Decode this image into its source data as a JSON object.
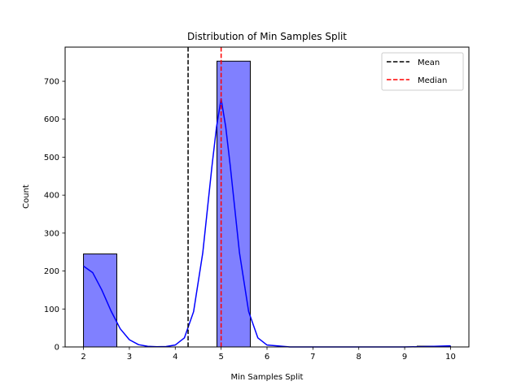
{
  "chart_data": {
    "type": "bar",
    "title": "Distribution of Min Samples Split",
    "xlabel": "Min Samples Split",
    "ylabel": "Count",
    "xlim": [
      1.6,
      10.4
    ],
    "ylim": [
      0,
      790
    ],
    "x_ticks": [
      2,
      3,
      4,
      5,
      6,
      7,
      8,
      9,
      10
    ],
    "y_ticks": [
      0,
      100,
      200,
      300,
      400,
      500,
      600,
      700
    ],
    "bins": [
      {
        "x0": 2.0,
        "x1": 2.727,
        "count": 245
      },
      {
        "x0": 2.727,
        "x1": 3.455,
        "count": 0
      },
      {
        "x0": 3.455,
        "x1": 4.182,
        "count": 0
      },
      {
        "x0": 4.182,
        "x1": 4.909,
        "count": 0
      },
      {
        "x0": 4.909,
        "x1": 5.636,
        "count": 753
      },
      {
        "x0": 5.636,
        "x1": 6.364,
        "count": 0
      },
      {
        "x0": 6.364,
        "x1": 7.091,
        "count": 0
      },
      {
        "x0": 7.091,
        "x1": 7.818,
        "count": 0
      },
      {
        "x0": 7.818,
        "x1": 8.545,
        "count": 0
      },
      {
        "x0": 8.545,
        "x1": 9.273,
        "count": 0
      },
      {
        "x0": 9.273,
        "x1": 10.0,
        "count": 2
      }
    ],
    "kde": {
      "x": [
        2.0,
        2.2,
        2.4,
        2.6,
        2.8,
        3.0,
        3.2,
        3.4,
        3.6,
        3.8,
        4.0,
        4.2,
        4.4,
        4.6,
        4.8,
        4.9,
        5.0,
        5.1,
        5.2,
        5.4,
        5.6,
        5.8,
        6.0,
        6.5,
        7.0,
        8.0,
        9.0,
        9.5,
        10.0
      ],
      "y": [
        213,
        196,
        150,
        95,
        48,
        19,
        6,
        1.5,
        0.5,
        1,
        5,
        24,
        93,
        248,
        476,
        580,
        654,
        580,
        476,
        248,
        93,
        24,
        5,
        0,
        0,
        0,
        0,
        1,
        3
      ]
    },
    "vlines": [
      {
        "name": "Mean",
        "x": 4.28,
        "color": "#000000"
      },
      {
        "name": "Median",
        "x": 5.0,
        "color": "#ff0000"
      }
    ],
    "legend": {
      "placement": "upper right",
      "entries": [
        {
          "label": "Mean",
          "color": "#000000"
        },
        {
          "label": "Median",
          "color": "#ff0000"
        }
      ]
    },
    "colors": {
      "bar_fill": "#8080ff",
      "bar_edge": "#000000",
      "kde_line": "#0000ff"
    },
    "grid": false
  }
}
